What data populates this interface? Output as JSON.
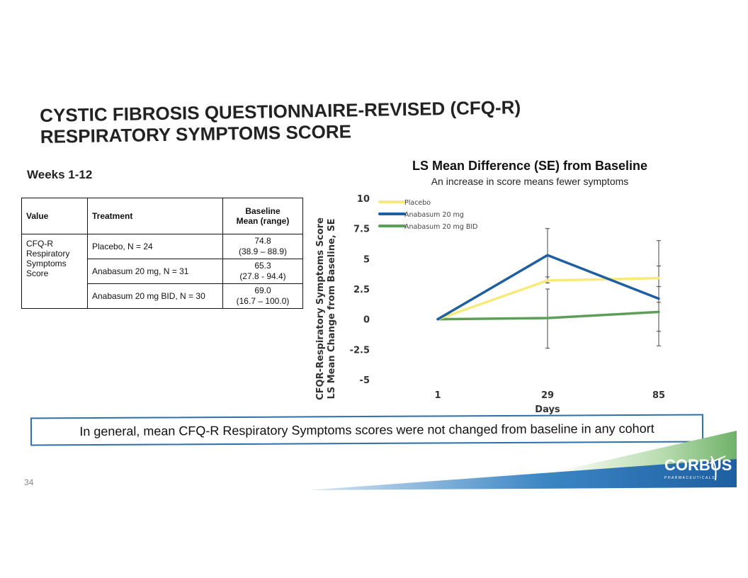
{
  "slide": {
    "title_line1": "CYSTIC FIBROSIS QUESTIONNAIRE-REVISED (CFQ-R)",
    "title_line2": "RESPIRATORY SYMPTOMS SCORE",
    "weeks_label": "Weeks 1-12",
    "callout": "In general, mean CFQ-R Respiratory Symptoms scores were not changed from baseline in any cohort",
    "page_number": "34",
    "logo_text": "CORBUS",
    "logo_subtext": "PHARMACEUTICALS"
  },
  "table": {
    "headers": {
      "value": "Value",
      "treatment": "Treatment",
      "baseline_line1": "Baseline",
      "baseline_line2": "Mean (range)"
    },
    "value_label": "CFQ-R Respiratory Symptoms Score",
    "rows": [
      {
        "treatment": "Placebo, N = 24",
        "mean": "74.8",
        "range": "(38.9 – 88.9)"
      },
      {
        "treatment": "Anabasum 20 mg, N = 31",
        "mean": "65.3",
        "range": "(27.8 - 94.4)"
      },
      {
        "treatment": "Anabasum 20 mg BID, N = 30",
        "mean": "69.0",
        "range": "(16.7 – 100.0)"
      }
    ]
  },
  "chart_data": {
    "type": "line",
    "title": "LS Mean Difference (SE) from Baseline",
    "subtitle": "An increase in score means fewer symptoms",
    "xlabel": "Days",
    "ylabel_line1": "CFQR-Respiratory Symptoms Score",
    "ylabel_line2": "LS Mean Change from Baseline, SE",
    "x": [
      1,
      29,
      85
    ],
    "x_tick_labels": [
      "1",
      "29",
      "85"
    ],
    "y_tick_labels": [
      "10",
      "7.5",
      "5",
      "2.5",
      "0",
      "-2.5",
      "-5"
    ],
    "y_ticks": [
      10,
      7.5,
      5,
      2.5,
      0,
      -2.5,
      -5
    ],
    "ylim": [
      -5,
      10
    ],
    "legend_position": "top-left",
    "grid": false,
    "series": [
      {
        "name": "Placebo",
        "color": "#f7ea7a",
        "values": [
          0,
          3.2,
          3.4
        ],
        "se_low": [
          0,
          3.0,
          2.7
        ],
        "se_high": [
          0,
          3.5,
          4.4
        ]
      },
      {
        "name": "Anabasum 20 mg",
        "color": "#1f5fa0",
        "values": [
          0,
          5.3,
          1.7
        ],
        "se_low": [
          0,
          3.2,
          -2.2
        ],
        "se_high": [
          0,
          7.5,
          6.5
        ]
      },
      {
        "name": "Anabasum 20 mg BID",
        "color": "#5e9e5a",
        "values": [
          0,
          0.1,
          0.6
        ],
        "se_low": [
          0,
          -2.4,
          -1.0
        ],
        "se_high": [
          0,
          2.5,
          1.4
        ]
      }
    ]
  }
}
